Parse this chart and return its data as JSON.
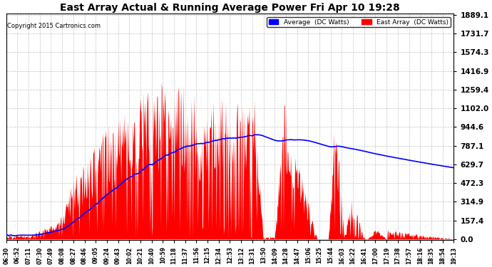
{
  "title": "East Array Actual & Running Average Power Fri Apr 10 19:28",
  "copyright": "Copyright 2015 Cartronics.com",
  "legend_labels": [
    "Average  (DC Watts)",
    "East Array  (DC Watts)"
  ],
  "legend_colors": [
    "#0000ff",
    "#ff0000"
  ],
  "y_max": 1889.1,
  "y_ticks": [
    0.0,
    157.4,
    314.9,
    472.3,
    629.7,
    787.1,
    944.6,
    1102.0,
    1259.4,
    1416.9,
    1574.3,
    1731.7,
    1889.1
  ],
  "background_color": "#ffffff",
  "plot_bg_color": "#ffffff",
  "grid_color": "#aaaaaa",
  "x_labels": [
    "06:30",
    "06:52",
    "07:11",
    "07:30",
    "07:49",
    "08:08",
    "08:27",
    "08:46",
    "09:05",
    "09:24",
    "09:43",
    "10:02",
    "10:21",
    "10:40",
    "10:59",
    "11:18",
    "11:37",
    "11:56",
    "12:15",
    "12:34",
    "12:53",
    "13:12",
    "13:31",
    "13:50",
    "14:09",
    "14:28",
    "14:47",
    "15:06",
    "15:25",
    "15:44",
    "16:03",
    "16:22",
    "16:41",
    "17:00",
    "17:19",
    "17:38",
    "17:57",
    "18:16",
    "18:35",
    "18:54",
    "19:13"
  ]
}
